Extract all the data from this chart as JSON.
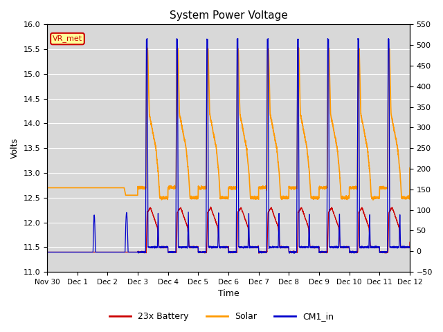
{
  "title": "System Power Voltage",
  "ylabel_left": "Volts",
  "xlabel": "Time",
  "ylim_left": [
    11.0,
    16.0
  ],
  "ylim_right": [
    -50,
    550
  ],
  "yticks_left": [
    11.0,
    11.5,
    12.0,
    12.5,
    13.0,
    13.5,
    14.0,
    14.5,
    15.0,
    15.5,
    16.0
  ],
  "yticks_right": [
    -50,
    0,
    50,
    100,
    150,
    200,
    250,
    300,
    350,
    400,
    450,
    500,
    550
  ],
  "xtick_labels": [
    "Nov 30",
    "Dec 1",
    "Dec 2",
    "Dec 3",
    "Dec 4",
    "Dec 5",
    "Dec 6",
    "Dec 7",
    "Dec 8",
    "Dec 9",
    "Dec 10",
    "Dec 11",
    "Dec 12"
  ],
  "annotation_text": "VR_met",
  "annotation_color": "#cc0000",
  "annotation_bg": "#ffff99",
  "bg_color": "#d8d8d8",
  "colors": {
    "battery": "#cc0000",
    "solar": "#ff9900",
    "cm1": "#0000cc"
  },
  "legend_labels": [
    "23x Battery",
    "Solar",
    "CM1_in"
  ]
}
